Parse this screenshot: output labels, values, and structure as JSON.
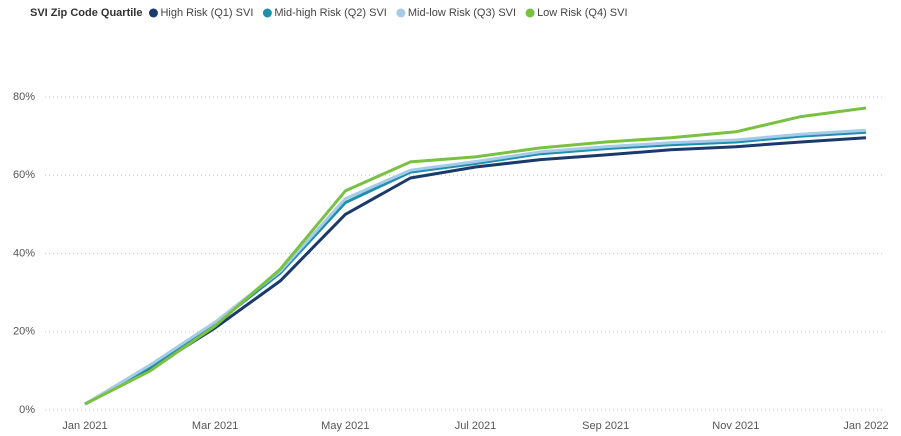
{
  "chart_data": {
    "type": "line",
    "legend_title": "SVI Zip Code Quartile",
    "x": [
      "Jan 2021",
      null,
      "Mar 2021",
      null,
      "May 2021",
      null,
      "Jul 2021",
      null,
      "Sep 2021",
      null,
      "Nov 2021",
      null,
      "Jan 2022"
    ],
    "series": [
      {
        "name": "High Risk (Q1) SVI",
        "color": "#1b3a6b",
        "values": [
          1.5,
          10.5,
          21,
          33,
          50,
          59.3,
          62.1,
          64,
          65.2,
          66.5,
          67.3,
          68.5,
          69.6
        ]
      },
      {
        "name": "Mid-high Risk (Q2) SVI",
        "color": "#1f8fb0",
        "values": [
          1.5,
          11,
          22,
          35,
          53,
          60.8,
          63,
          65.5,
          66.8,
          67.8,
          68.5,
          70,
          71
        ]
      },
      {
        "name": "Mid-low Risk (Q3) SVI",
        "color": "#a6cbe8",
        "values": [
          1.5,
          11.5,
          22.5,
          35.5,
          54,
          61.3,
          63.5,
          66,
          67.3,
          68.3,
          69,
          70.5,
          71.5
        ]
      },
      {
        "name": "Low Risk (Q4) SVI",
        "color": "#7ac142",
        "values": [
          1.5,
          10,
          21.5,
          36,
          56,
          63.4,
          64.7,
          67,
          68.5,
          69.6,
          71.1,
          75,
          77.2
        ]
      }
    ],
    "ylim": [
      0,
      80
    ],
    "yticks": [
      {
        "value": 0,
        "label": "0%"
      },
      {
        "value": 20,
        "label": "20%"
      },
      {
        "value": 40,
        "label": "40%"
      },
      {
        "value": 60,
        "label": "60%"
      },
      {
        "value": 80,
        "label": "80%"
      }
    ],
    "grid": true
  }
}
